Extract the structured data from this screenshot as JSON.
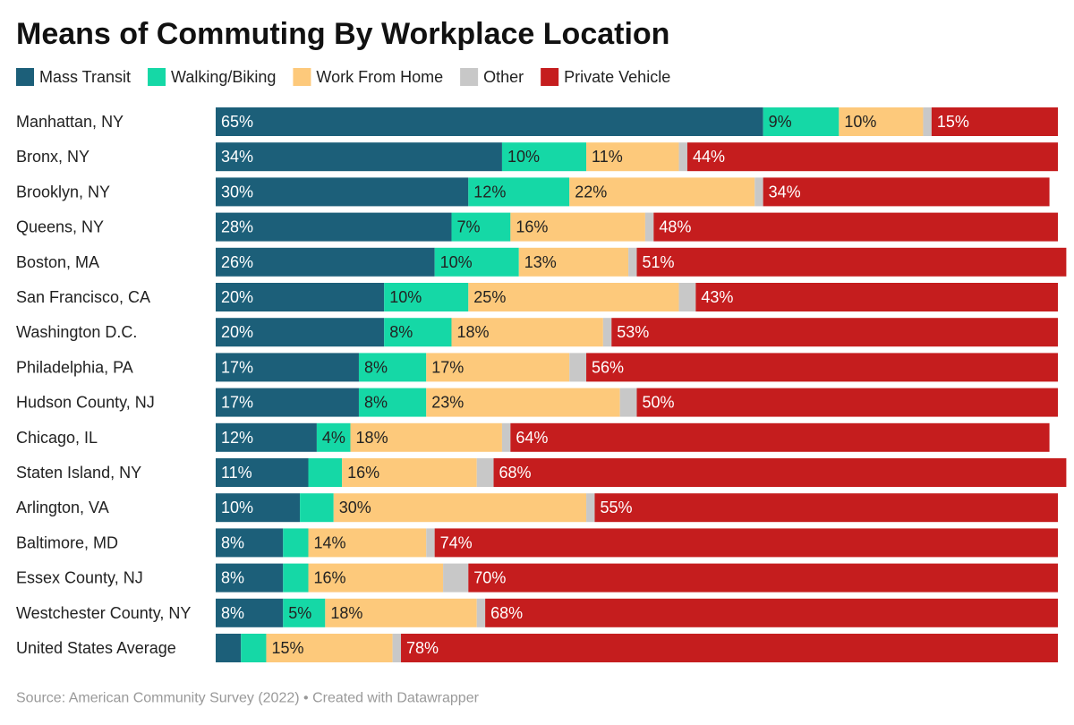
{
  "chart_data": {
    "type": "stacked-bar",
    "orientation": "horizontal",
    "title": "Means of Commuting By Workplace Location",
    "source": "Source: American Community Survey (2022) • Created with Datawrapper",
    "categories": [
      "Manhattan, NY",
      "Bronx, NY",
      "Brooklyn, NY",
      "Queens, NY",
      "Boston, MA",
      "San Francisco, CA",
      "Washington D.C.",
      "Philadelphia, PA",
      "Hudson County, NJ",
      "Chicago, IL",
      "Staten Island, NY",
      "Arlington, VA",
      "Baltimore, MD",
      "Essex County, NJ",
      "Westchester County, NY",
      "United States Average"
    ],
    "xlim": [
      0,
      100
    ],
    "series": [
      {
        "name": "Mass Transit",
        "color": "#1c5f79",
        "values": [
          65,
          34,
          30,
          28,
          26,
          20,
          20,
          17,
          17,
          12,
          11,
          10,
          8,
          8,
          8,
          3
        ],
        "value_labels": [
          "65%",
          "34%",
          "30%",
          "28%",
          "26%",
          "20%",
          "20%",
          "17%",
          "17%",
          "12%",
          "11%",
          "10%",
          "8%",
          "8%",
          "8%",
          null
        ]
      },
      {
        "name": "Walking/Biking",
        "color": "#15d8a6",
        "values": [
          9,
          10,
          12,
          7,
          10,
          10,
          8,
          8,
          8,
          4,
          4,
          4,
          3,
          3,
          5,
          3
        ],
        "value_labels": [
          "9%",
          "10%",
          "12%",
          "7%",
          "10%",
          "10%",
          "8%",
          "8%",
          "8%",
          "4%",
          null,
          null,
          null,
          null,
          "5%",
          null
        ]
      },
      {
        "name": "Work From Home",
        "color": "#fdc97b",
        "values": [
          10,
          11,
          22,
          16,
          13,
          25,
          18,
          17,
          23,
          18,
          16,
          30,
          14,
          16,
          18,
          15
        ],
        "value_labels": [
          "10%",
          "11%",
          "22%",
          "16%",
          "13%",
          "25%",
          "18%",
          "17%",
          "23%",
          "18%",
          "16%",
          "30%",
          "14%",
          "16%",
          "18%",
          "15%"
        ]
      },
      {
        "name": "Other",
        "color": "#c8c8c8",
        "values": [
          1,
          1,
          1,
          1,
          1,
          2,
          1,
          2,
          2,
          1,
          2,
          1,
          1,
          3,
          1,
          1
        ],
        "value_labels": [
          null,
          null,
          null,
          null,
          null,
          null,
          null,
          null,
          null,
          null,
          null,
          null,
          null,
          null,
          null,
          null
        ]
      },
      {
        "name": "Private Vehicle",
        "color": "#c51d1e",
        "values": [
          15,
          44,
          34,
          48,
          51,
          43,
          53,
          56,
          50,
          64,
          68,
          55,
          74,
          70,
          68,
          78
        ],
        "value_labels": [
          "15%",
          "44%",
          "34%",
          "48%",
          "51%",
          "43%",
          "53%",
          "56%",
          "50%",
          "64%",
          "68%",
          "55%",
          "74%",
          "70%",
          "68%",
          "78%"
        ]
      }
    ]
  }
}
